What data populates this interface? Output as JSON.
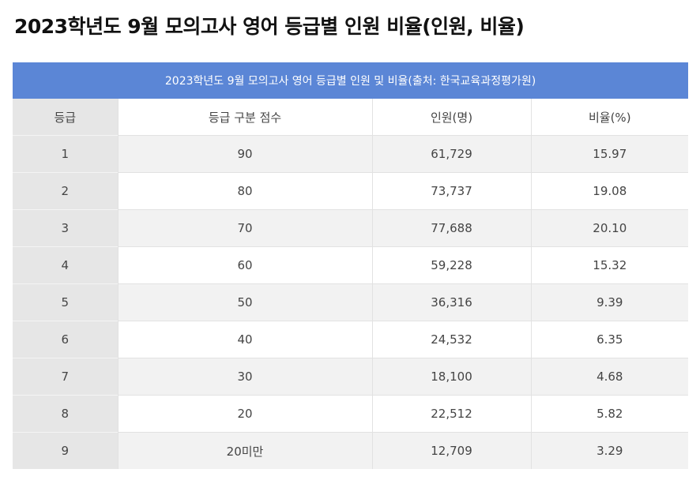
{
  "page": {
    "title": "2023학년도 9월 모의고사 영어 등급별 인원 비율(인원, 비율)"
  },
  "table": {
    "caption": "2023학년도 9월 모의고사 영어 등급별 인원 및 비율(출처: 한국교육과정평가원)",
    "headers": [
      "등급",
      "등급 구분 점수",
      "인원(명)",
      "비율(%)"
    ],
    "rows": [
      [
        "1",
        "90",
        "61,729",
        "15.97"
      ],
      [
        "2",
        "80",
        "73,737",
        "19.08"
      ],
      [
        "3",
        "70",
        "77,688",
        "20.10"
      ],
      [
        "4",
        "60",
        "59,228",
        "15.32"
      ],
      [
        "5",
        "50",
        "36,316",
        "9.39"
      ],
      [
        "6",
        "40",
        "24,532",
        "6.35"
      ],
      [
        "7",
        "30",
        "18,100",
        "4.68"
      ],
      [
        "8",
        "20",
        "22,512",
        "5.82"
      ],
      [
        "9",
        "20미만",
        "12,709",
        "3.29"
      ]
    ]
  },
  "colors": {
    "caption_bg": "#5b86d6",
    "grade_column_bg": "#e6e6e6",
    "stripe_bg": "#f2f2f2"
  }
}
